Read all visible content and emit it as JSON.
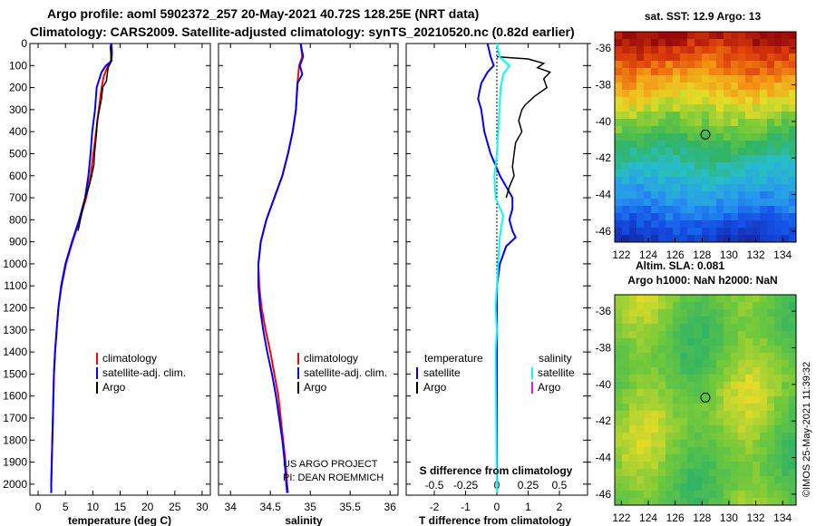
{
  "header": {
    "title_line1": "Argo profile: aoml 5902372_257 20-May-2021 40.72S 128.25E (NRT data)",
    "title_line2": "Climatology: CARS2009. Satellite-adjusted climatology: synTS_20210520.nc (0.82d earlier)"
  },
  "side_labels": {
    "sst_title": "sat. SST: 12.9 Argo: 13",
    "sla_title": "Altim. SLA: 0.081",
    "h_title": "Argo h1000: NaN h2000: NaN",
    "imos_stamp": "©IMOS 25-May-2021 11:39:32"
  },
  "colors": {
    "climatology": "#ff0000",
    "satellite": "#0000ff",
    "argo": "#000000",
    "sal_satellite": "#00ffff",
    "sal_argo": "#ff00ff"
  },
  "chart_data": [
    {
      "type": "line",
      "name": "temperature-profile",
      "xlabel": "temperature (deg C)",
      "ylabel": "depth",
      "xlim": [
        -1.5,
        31.5
      ],
      "ylim": [
        2050,
        0
      ],
      "xticks": [
        0,
        5,
        10,
        15,
        20,
        25,
        30
      ],
      "xtick_labels": [
        "0",
        "5",
        "10",
        "15",
        "20",
        "25",
        "30"
      ],
      "yticks": [
        0,
        100,
        200,
        300,
        400,
        500,
        600,
        700,
        800,
        900,
        1000,
        1100,
        1200,
        1300,
        1400,
        1500,
        1600,
        1700,
        1800,
        1900,
        2000
      ],
      "legend": [
        "climatology",
        "satellite-adj. clim.",
        "Argo"
      ],
      "series": [
        {
          "name": "climatology",
          "color": "#ff0000",
          "points": [
            [
              13.3,
              0
            ],
            [
              13.4,
              40
            ],
            [
              13.3,
              80
            ],
            [
              12.8,
              100
            ],
            [
              12.0,
              150
            ],
            [
              11.6,
              200
            ],
            [
              11.1,
              300
            ],
            [
              10.6,
              400
            ],
            [
              10.1,
              500
            ],
            [
              9.6,
              600
            ],
            [
              8.8,
              700
            ],
            [
              7.6,
              800
            ],
            [
              6.3,
              900
            ],
            [
              5.1,
              1000
            ],
            [
              4.3,
              1100
            ],
            [
              3.7,
              1200
            ],
            [
              3.4,
              1300
            ],
            [
              3.1,
              1400
            ],
            [
              2.9,
              1500
            ],
            [
              2.8,
              1600
            ],
            [
              2.7,
              1700
            ],
            [
              2.6,
              1800
            ],
            [
              2.5,
              1900
            ],
            [
              2.4,
              2000
            ],
            [
              2.4,
              2040
            ]
          ]
        },
        {
          "name": "satellite",
          "color": "#0000ff",
          "points": [
            [
              13.4,
              0
            ],
            [
              13.5,
              40
            ],
            [
              13.4,
              80
            ],
            [
              12.4,
              100
            ],
            [
              11.6,
              130
            ],
            [
              10.7,
              200
            ],
            [
              10.4,
              300
            ],
            [
              9.9,
              400
            ],
            [
              9.6,
              500
            ],
            [
              9.2,
              600
            ],
            [
              8.6,
              700
            ],
            [
              7.5,
              800
            ],
            [
              6.2,
              900
            ],
            [
              5.0,
              1000
            ],
            [
              4.2,
              1100
            ],
            [
              3.7,
              1200
            ],
            [
              3.4,
              1300
            ],
            [
              3.1,
              1400
            ],
            [
              2.9,
              1500
            ],
            [
              2.8,
              1600
            ],
            [
              2.7,
              1700
            ],
            [
              2.6,
              1800
            ],
            [
              2.5,
              1900
            ],
            [
              2.4,
              2000
            ],
            [
              2.4,
              2040
            ]
          ]
        },
        {
          "name": "argo",
          "color": "#000000",
          "points": [
            [
              13.2,
              10
            ],
            [
              13.4,
              80
            ],
            [
              12.8,
              110
            ],
            [
              12.5,
              170
            ],
            [
              11.8,
              200
            ],
            [
              11.6,
              250
            ],
            [
              11.2,
              300
            ],
            [
              10.8,
              350
            ],
            [
              10.7,
              400
            ],
            [
              10.3,
              500
            ],
            [
              10.2,
              550
            ],
            [
              9.8,
              600
            ],
            [
              9.3,
              650
            ],
            [
              8.6,
              700
            ],
            [
              7.9,
              780
            ],
            [
              7.3,
              850
            ]
          ]
        }
      ]
    },
    {
      "type": "line",
      "name": "salinity-profile",
      "xlabel": "salinity",
      "ylabel": "depth",
      "xlim": [
        33.85,
        36.1
      ],
      "ylim": [
        2050,
        0
      ],
      "xticks": [
        34,
        34.5,
        35,
        35.5,
        36
      ],
      "xtick_labels": [
        "34",
        "34.5",
        "35",
        "35.5",
        "36"
      ],
      "legend": [
        "climatology",
        "satellite-adj. clim.",
        "Argo"
      ],
      "annotation": [
        "US ARGO PROJECT",
        "PI: DEAN ROEMMICH"
      ],
      "series": [
        {
          "name": "climatology",
          "color": "#ff0000",
          "points": [
            [
              34.88,
              0
            ],
            [
              34.9,
              60
            ],
            [
              34.86,
              100
            ],
            [
              34.84,
              180
            ],
            [
              34.82,
              300
            ],
            [
              34.78,
              400
            ],
            [
              34.72,
              500
            ],
            [
              34.65,
              600
            ],
            [
              34.55,
              700
            ],
            [
              34.45,
              800
            ],
            [
              34.38,
              900
            ],
            [
              34.35,
              1000
            ],
            [
              34.36,
              1100
            ],
            [
              34.39,
              1200
            ],
            [
              34.44,
              1300
            ],
            [
              34.5,
              1400
            ],
            [
              34.55,
              1500
            ],
            [
              34.6,
              1600
            ],
            [
              34.63,
              1700
            ],
            [
              34.66,
              1800
            ],
            [
              34.69,
              1900
            ],
            [
              34.71,
              2000
            ],
            [
              34.72,
              2040
            ]
          ]
        },
        {
          "name": "satellite",
          "color": "#0000ff",
          "points": [
            [
              34.88,
              0
            ],
            [
              34.91,
              60
            ],
            [
              34.87,
              100
            ],
            [
              34.9,
              140
            ],
            [
              34.84,
              180
            ],
            [
              34.82,
              300
            ],
            [
              34.78,
              400
            ],
            [
              34.72,
              500
            ],
            [
              34.65,
              600
            ],
            [
              34.55,
              700
            ],
            [
              34.45,
              800
            ],
            [
              34.38,
              900
            ],
            [
              34.35,
              1000
            ],
            [
              34.35,
              1100
            ],
            [
              34.37,
              1200
            ],
            [
              34.41,
              1300
            ],
            [
              34.46,
              1400
            ],
            [
              34.52,
              1500
            ],
            [
              34.57,
              1600
            ],
            [
              34.61,
              1700
            ],
            [
              34.65,
              1800
            ],
            [
              34.68,
              1900
            ],
            [
              34.7,
              2000
            ],
            [
              34.71,
              2040
            ]
          ]
        },
        {
          "name": "argo",
          "color": "#000000",
          "points": []
        }
      ]
    },
    {
      "type": "line",
      "name": "difference-profile",
      "xlabel": "T difference from climatology",
      "xlabel_top": "S difference from climatology",
      "ylabel": "depth",
      "xlim": [
        -2.9,
        2.9
      ],
      "ylim": [
        2050,
        0
      ],
      "xticks": [
        -2,
        -1,
        0,
        1,
        2
      ],
      "xtick_labels": [
        "-2",
        "-1",
        "0",
        "1",
        "2"
      ],
      "sticks": [
        -0.5,
        -0.25,
        0,
        0.25,
        0.5
      ],
      "stick_labels": [
        "-0.5",
        "-0.25",
        "0",
        "0.25",
        "0.5"
      ],
      "slim": [
        -0.725,
        0.725
      ],
      "legend_temperature": [
        "temperature",
        "satellite",
        "Argo"
      ],
      "legend_salinity": [
        "salinity",
        "satellite",
        "Argo"
      ],
      "series": [
        {
          "name": "temperature-satellite",
          "color": "#0000ff",
          "points": [
            [
              -0.3,
              0
            ],
            [
              -0.2,
              60
            ],
            [
              -0.1,
              100
            ],
            [
              -0.3,
              130
            ],
            [
              -0.5,
              180
            ],
            [
              -0.6,
              250
            ],
            [
              -0.5,
              300
            ],
            [
              -0.4,
              400
            ],
            [
              -0.2,
              500
            ],
            [
              0.1,
              600
            ],
            [
              0.5,
              700
            ],
            [
              0.5,
              750
            ],
            [
              0.4,
              800
            ],
            [
              0.5,
              850
            ],
            [
              0.6,
              880
            ],
            [
              0.3,
              920
            ],
            [
              0.1,
              1000
            ],
            [
              0.0,
              1100
            ],
            [
              0.0,
              1200
            ],
            [
              0.0,
              2040
            ]
          ]
        },
        {
          "name": "temperature-argo",
          "color": "#000000",
          "points": [
            [
              0.0,
              60
            ],
            [
              1.0,
              70
            ],
            [
              1.5,
              90
            ],
            [
              1.3,
              110
            ],
            [
              1.7,
              130
            ],
            [
              1.5,
              160
            ],
            [
              1.6,
              200
            ],
            [
              1.2,
              240
            ],
            [
              0.9,
              280
            ],
            [
              0.8,
              300
            ],
            [
              0.7,
              350
            ],
            [
              0.8,
              400
            ],
            [
              0.6,
              450
            ],
            [
              0.55,
              500
            ],
            [
              0.5,
              560
            ],
            [
              0.55,
              600
            ],
            [
              0.4,
              650
            ],
            [
              0.3,
              700
            ]
          ]
        },
        {
          "name": "salinity-satellite",
          "color": "#00ffff",
          "points": [
            [
              0.0,
              0
            ],
            [
              0.02,
              60
            ],
            [
              0.1,
              100
            ],
            [
              0.05,
              140
            ],
            [
              0.03,
              200
            ],
            [
              0.02,
              300
            ],
            [
              0.01,
              400
            ],
            [
              0.0,
              500
            ],
            [
              -0.02,
              600
            ],
            [
              -0.01,
              700
            ],
            [
              0.05,
              780
            ],
            [
              0.03,
              850
            ],
            [
              0.02,
              900
            ],
            [
              0.01,
              1000
            ],
            [
              0.0,
              1100
            ],
            [
              -0.01,
              1200
            ],
            [
              0.0,
              1300
            ],
            [
              -0.01,
              1400
            ],
            [
              0.0,
              2040
            ]
          ]
        },
        {
          "name": "salinity-argo",
          "color": "#ff00ff",
          "points": []
        }
      ]
    },
    {
      "type": "heatmap",
      "name": "sst-map",
      "title": "sat. SST: 12.9 Argo: 13",
      "xlim": [
        121.5,
        135
      ],
      "ylim": [
        -46.6,
        -35.1
      ],
      "xticks": [
        122,
        124,
        126,
        128,
        130,
        132,
        134
      ],
      "xtick_labels": [
        "122",
        "124",
        "126",
        "128",
        "130",
        "132",
        "134"
      ],
      "yticks": [
        -36,
        -38,
        -40,
        -42,
        -44,
        -46
      ],
      "ytick_labels": [
        "-36",
        "-38",
        "-40",
        "-42",
        "-44",
        "-46"
      ],
      "marker": {
        "lon": 128.25,
        "lat": -40.72
      }
    },
    {
      "type": "heatmap",
      "name": "sla-map",
      "title": "Argo h1000: NaN h2000: NaN",
      "xlim": [
        121.5,
        135
      ],
      "ylim": [
        -46.6,
        -35.1
      ],
      "xticks": [
        122,
        124,
        126,
        128,
        130,
        132,
        134
      ],
      "xtick_labels": [
        "122",
        "124",
        "126",
        "128",
        "130",
        "132",
        "134"
      ],
      "yticks": [
        -36,
        -38,
        -40,
        -42,
        -44,
        -46
      ],
      "ytick_labels": [
        "-36",
        "-38",
        "-40",
        "-42",
        "-44",
        "-46"
      ],
      "marker": {
        "lon": 128.25,
        "lat": -40.72
      }
    }
  ]
}
